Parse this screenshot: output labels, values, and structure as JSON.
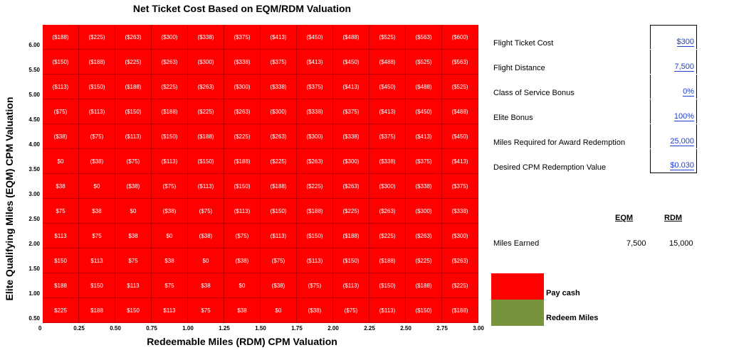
{
  "chart_title": "Net Ticket Cost Based on EQM/RDM Valuation",
  "y_axis_label": "Elite Qualifying Miles (EQM) CPM Valuation",
  "x_axis_label": "Redeemable Miles (RDM) CPM Valuation",
  "chart_data": {
    "type": "heatmap",
    "title": "Net Ticket Cost Based on EQM/RDM Valuation",
    "xlabel": "Redeemable Miles (RDM) CPM Valuation",
    "ylabel": "Elite Qualifying Miles (EQM) CPM Valuation",
    "x_ticks": [
      "0.25",
      "0.50",
      "0.75",
      "1.00",
      "1.25",
      "1.50",
      "1.75",
      "2.00",
      "2.25",
      "2.50",
      "2.75",
      "3.00"
    ],
    "y_ticks": [
      "6.00",
      "5.50",
      "5.00",
      "4.50",
      "4.00",
      "3.50",
      "3.00",
      "2.50",
      "2.00",
      "1.50",
      "1.00",
      "0.50"
    ],
    "origin_label": "0",
    "cells": [
      [
        "($188)",
        "($225)",
        "($263)",
        "($300)",
        "($338)",
        "($375)",
        "($413)",
        "($450)",
        "($488)",
        "($525)",
        "($563)",
        "($600)"
      ],
      [
        "($150)",
        "($188)",
        "($225)",
        "($263)",
        "($300)",
        "($338)",
        "($375)",
        "($413)",
        "($450)",
        "($488)",
        "($525)",
        "($563)"
      ],
      [
        "($113)",
        "($150)",
        "($188)",
        "($225)",
        "($263)",
        "($300)",
        "($338)",
        "($375)",
        "($413)",
        "($450)",
        "($488)",
        "($525)"
      ],
      [
        "($75)",
        "($113)",
        "($150)",
        "($188)",
        "($225)",
        "($263)",
        "($300)",
        "($338)",
        "($375)",
        "($413)",
        "($450)",
        "($488)"
      ],
      [
        "($38)",
        "($75)",
        "($113)",
        "($150)",
        "($188)",
        "($225)",
        "($263)",
        "($300)",
        "($338)",
        "($375)",
        "($413)",
        "($450)"
      ],
      [
        "$0",
        "($38)",
        "($75)",
        "($113)",
        "($150)",
        "($188)",
        "($225)",
        "($263)",
        "($300)",
        "($338)",
        "($375)",
        "($413)"
      ],
      [
        "$38",
        "$0",
        "($38)",
        "($75)",
        "($113)",
        "($150)",
        "($188)",
        "($225)",
        "($263)",
        "($300)",
        "($338)",
        "($375)"
      ],
      [
        "$75",
        "$38",
        "$0",
        "($38)",
        "($75)",
        "($113)",
        "($150)",
        "($188)",
        "($225)",
        "($263)",
        "($300)",
        "($338)"
      ],
      [
        "$113",
        "$75",
        "$38",
        "$0",
        "($38)",
        "($75)",
        "($113)",
        "($150)",
        "($188)",
        "($225)",
        "($263)",
        "($300)"
      ],
      [
        "$150",
        "$113",
        "$75",
        "$38",
        "$0",
        "($38)",
        "($75)",
        "($113)",
        "($150)",
        "($188)",
        "($225)",
        "($263)"
      ],
      [
        "$188",
        "$150",
        "$113",
        "$75",
        "$38",
        "$0",
        "($38)",
        "($75)",
        "($113)",
        "($150)",
        "($188)",
        "($225)"
      ],
      [
        "$225",
        "$188",
        "$150",
        "$113",
        "$75",
        "$38",
        "$0",
        "($38)",
        "($75)",
        "($113)",
        "($150)",
        "($188)"
      ]
    ],
    "cell_color": "#ff0000"
  },
  "params": [
    {
      "label": "Flight Ticket Cost",
      "value": "$300"
    },
    {
      "label": "Flight Distance",
      "value": "7,500"
    },
    {
      "label": "Class of Service Bonus",
      "value": "0%"
    },
    {
      "label": "Elite Bonus",
      "value": "100%"
    },
    {
      "label": "Miles Required for Award Redemption",
      "value": "25,000"
    },
    {
      "label": "Desired CPM Redemption Value",
      "value": "$0.030"
    }
  ],
  "miles": {
    "eqm_header": "EQM",
    "rdm_header": "RDM",
    "row_label": "Miles Earned",
    "eqm_value": "7,500",
    "rdm_value": "15,000"
  },
  "legend": {
    "pay_cash": "Pay cash",
    "pay_cash_color": "#ff0000",
    "redeem_miles": "Redeem Miles",
    "redeem_miles_color": "#77933c"
  }
}
